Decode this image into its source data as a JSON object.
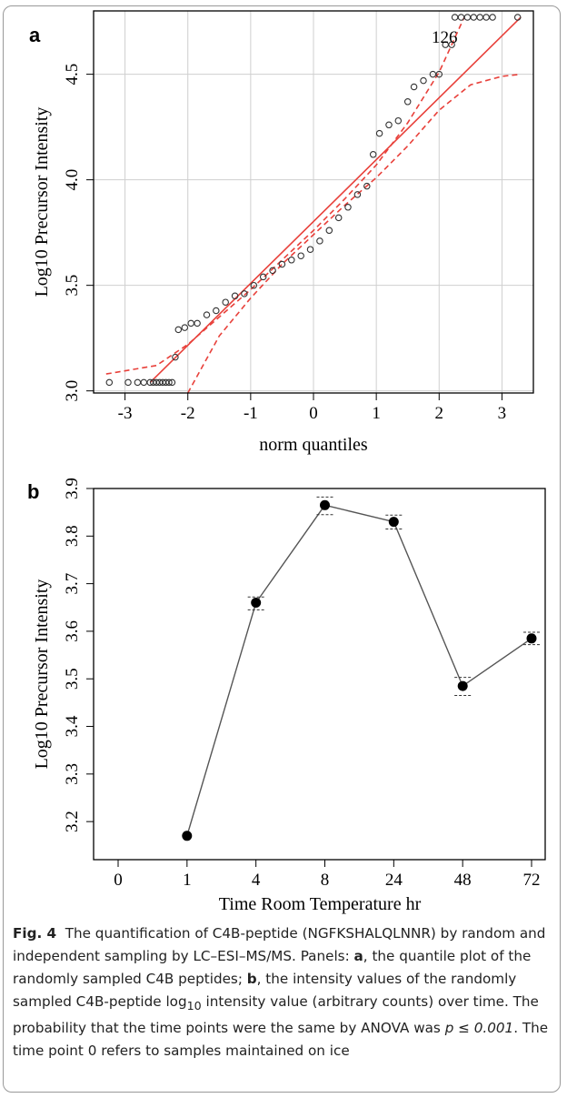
{
  "chart_data": [
    {
      "panel": "a",
      "type": "scatter",
      "xlabel": "norm quantiles",
      "ylabel": "Log10 Precursor Intensity",
      "xlim": [
        -3.5,
        3.5
      ],
      "ylim": [
        2.99,
        4.8
      ],
      "xticks": [
        "-3",
        "-2",
        "-1",
        "0",
        "1",
        "2",
        "3"
      ],
      "yticks": [
        "3.0",
        "3.5",
        "4.0",
        "4.5"
      ],
      "grid": true,
      "annotation": "126",
      "ref_line": {
        "x": [
          -2.6,
          3.3
        ],
        "y": [
          3.04,
          4.77
        ]
      },
      "envelope_upper": {
        "x": [
          -3.3,
          -2.5,
          -2,
          -1.5,
          -1,
          -0.5,
          0,
          0.5,
          1,
          1.5,
          2,
          2.4
        ],
        "y": [
          3.08,
          3.12,
          3.22,
          3.35,
          3.48,
          3.62,
          3.76,
          3.91,
          4.07,
          4.27,
          4.51,
          4.77
        ]
      },
      "envelope_lower": {
        "x": [
          -2.0,
          -1.5,
          -1,
          -0.5,
          0,
          0.5,
          1,
          1.5,
          2,
          2.5,
          3,
          3.3
        ],
        "y": [
          2.99,
          3.26,
          3.44,
          3.6,
          3.74,
          3.88,
          4.01,
          4.16,
          4.33,
          4.45,
          4.49,
          4.5
        ]
      },
      "points": {
        "x": [
          -3.25,
          -2.95,
          -2.8,
          -2.7,
          -2.6,
          -2.55,
          -2.5,
          -2.45,
          -2.4,
          -2.35,
          -2.3,
          -2.25,
          -2.2,
          -2.15,
          -2.05,
          -1.95,
          -1.85,
          -1.7,
          -1.55,
          -1.4,
          -1.25,
          -1.1,
          -0.95,
          -0.8,
          -0.65,
          -0.5,
          -0.35,
          -0.2,
          -0.05,
          0.1,
          0.25,
          0.4,
          0.55,
          0.7,
          0.85,
          0.95,
          1.05,
          1.2,
          1.35,
          1.5,
          1.6,
          1.75,
          1.9,
          2.0,
          2.1,
          2.2,
          2.25,
          2.35,
          2.45,
          2.55,
          2.65,
          2.75,
          2.85,
          3.25
        ],
        "y": [
          3.04,
          3.04,
          3.04,
          3.04,
          3.04,
          3.04,
          3.04,
          3.04,
          3.04,
          3.04,
          3.04,
          3.04,
          3.16,
          3.29,
          3.3,
          3.32,
          3.32,
          3.36,
          3.38,
          3.42,
          3.45,
          3.46,
          3.5,
          3.54,
          3.57,
          3.6,
          3.62,
          3.64,
          3.67,
          3.71,
          3.76,
          3.82,
          3.87,
          3.93,
          3.97,
          4.12,
          4.22,
          4.26,
          4.28,
          4.37,
          4.44,
          4.47,
          4.5,
          4.5,
          4.64,
          4.64,
          4.77,
          4.77,
          4.77,
          4.77,
          4.77,
          4.77,
          4.77,
          4.77
        ]
      }
    },
    {
      "panel": "b",
      "type": "line",
      "xlabel": "Time Room Temperature hr",
      "ylabel": "Log10 Precursor Intensity",
      "categories": [
        "0",
        "1",
        "4",
        "8",
        "24",
        "48",
        "72"
      ],
      "ylim": [
        3.12,
        3.9
      ],
      "yticks": [
        "3.2",
        "3.3",
        "3.4",
        "3.5",
        "3.6",
        "3.7",
        "3.8",
        "3.9"
      ],
      "grid": false,
      "series": [
        {
          "values": [
            null,
            3.17,
            3.66,
            3.865,
            3.83,
            3.485,
            3.585
          ],
          "err_low": [
            null,
            3.17,
            3.645,
            3.845,
            3.815,
            3.465,
            3.572
          ],
          "err_high": [
            null,
            3.17,
            3.672,
            3.882,
            3.844,
            3.503,
            3.598
          ]
        }
      ]
    }
  ],
  "panel_letters": {
    "a": "a",
    "b": "b"
  },
  "caption": {
    "fig_label": "Fig. 4",
    "text_1": "The quantification of C4B-peptide (NGFKSHALQLNNR) by random and independent sampling by LC–ESI–MS/MS. Panels: ",
    "panel_a": "a",
    "text_2": ", the quantile plot of the randomly sampled C4B peptides; ",
    "panel_b": "b",
    "text_3": ", the intensity values of the randomly sampled C4B-peptide log",
    "sub": "10",
    "text_4": " intensity value (arbitrary counts) over time. The probability that the time points were the same by ANOVA was ",
    "p_text": "p ≤ 0.001",
    "text_5": ". The time point 0 refers to samples maintained on ice"
  }
}
